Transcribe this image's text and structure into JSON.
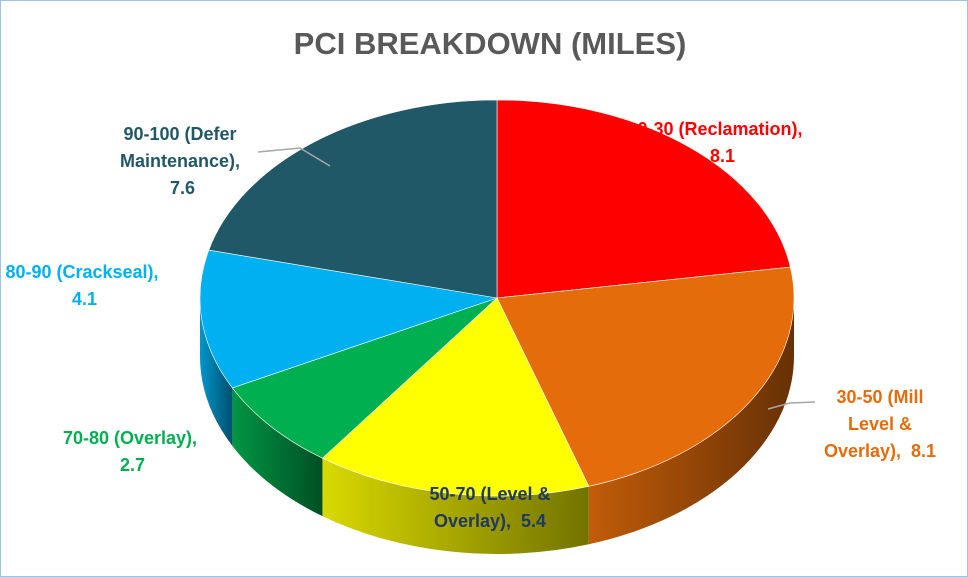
{
  "chart_data": {
    "type": "pie3d",
    "title": "PCI BREAKDOWN (MILES)",
    "categories": [
      "0-30 (Reclamation),",
      "30-50 (Mill Level & Overlay),",
      "50-70 (Level & Overlay),",
      "70-80 (Overlay),",
      "80-90 (Crackseal),",
      "90-100 (Defer Maintenance),"
    ],
    "values": [
      8.1,
      8.1,
      5.4,
      2.7,
      4.1,
      7.6
    ],
    "colors": [
      "#ff0000",
      "#e46c0a",
      "#ffff00",
      "#00b050",
      "#00b0f0",
      "#215868"
    ],
    "label_colors": [
      "#ff0000",
      "#e46c0a",
      "#1f3864",
      "#00b050",
      "#00b0f0",
      "#215868"
    ]
  }
}
